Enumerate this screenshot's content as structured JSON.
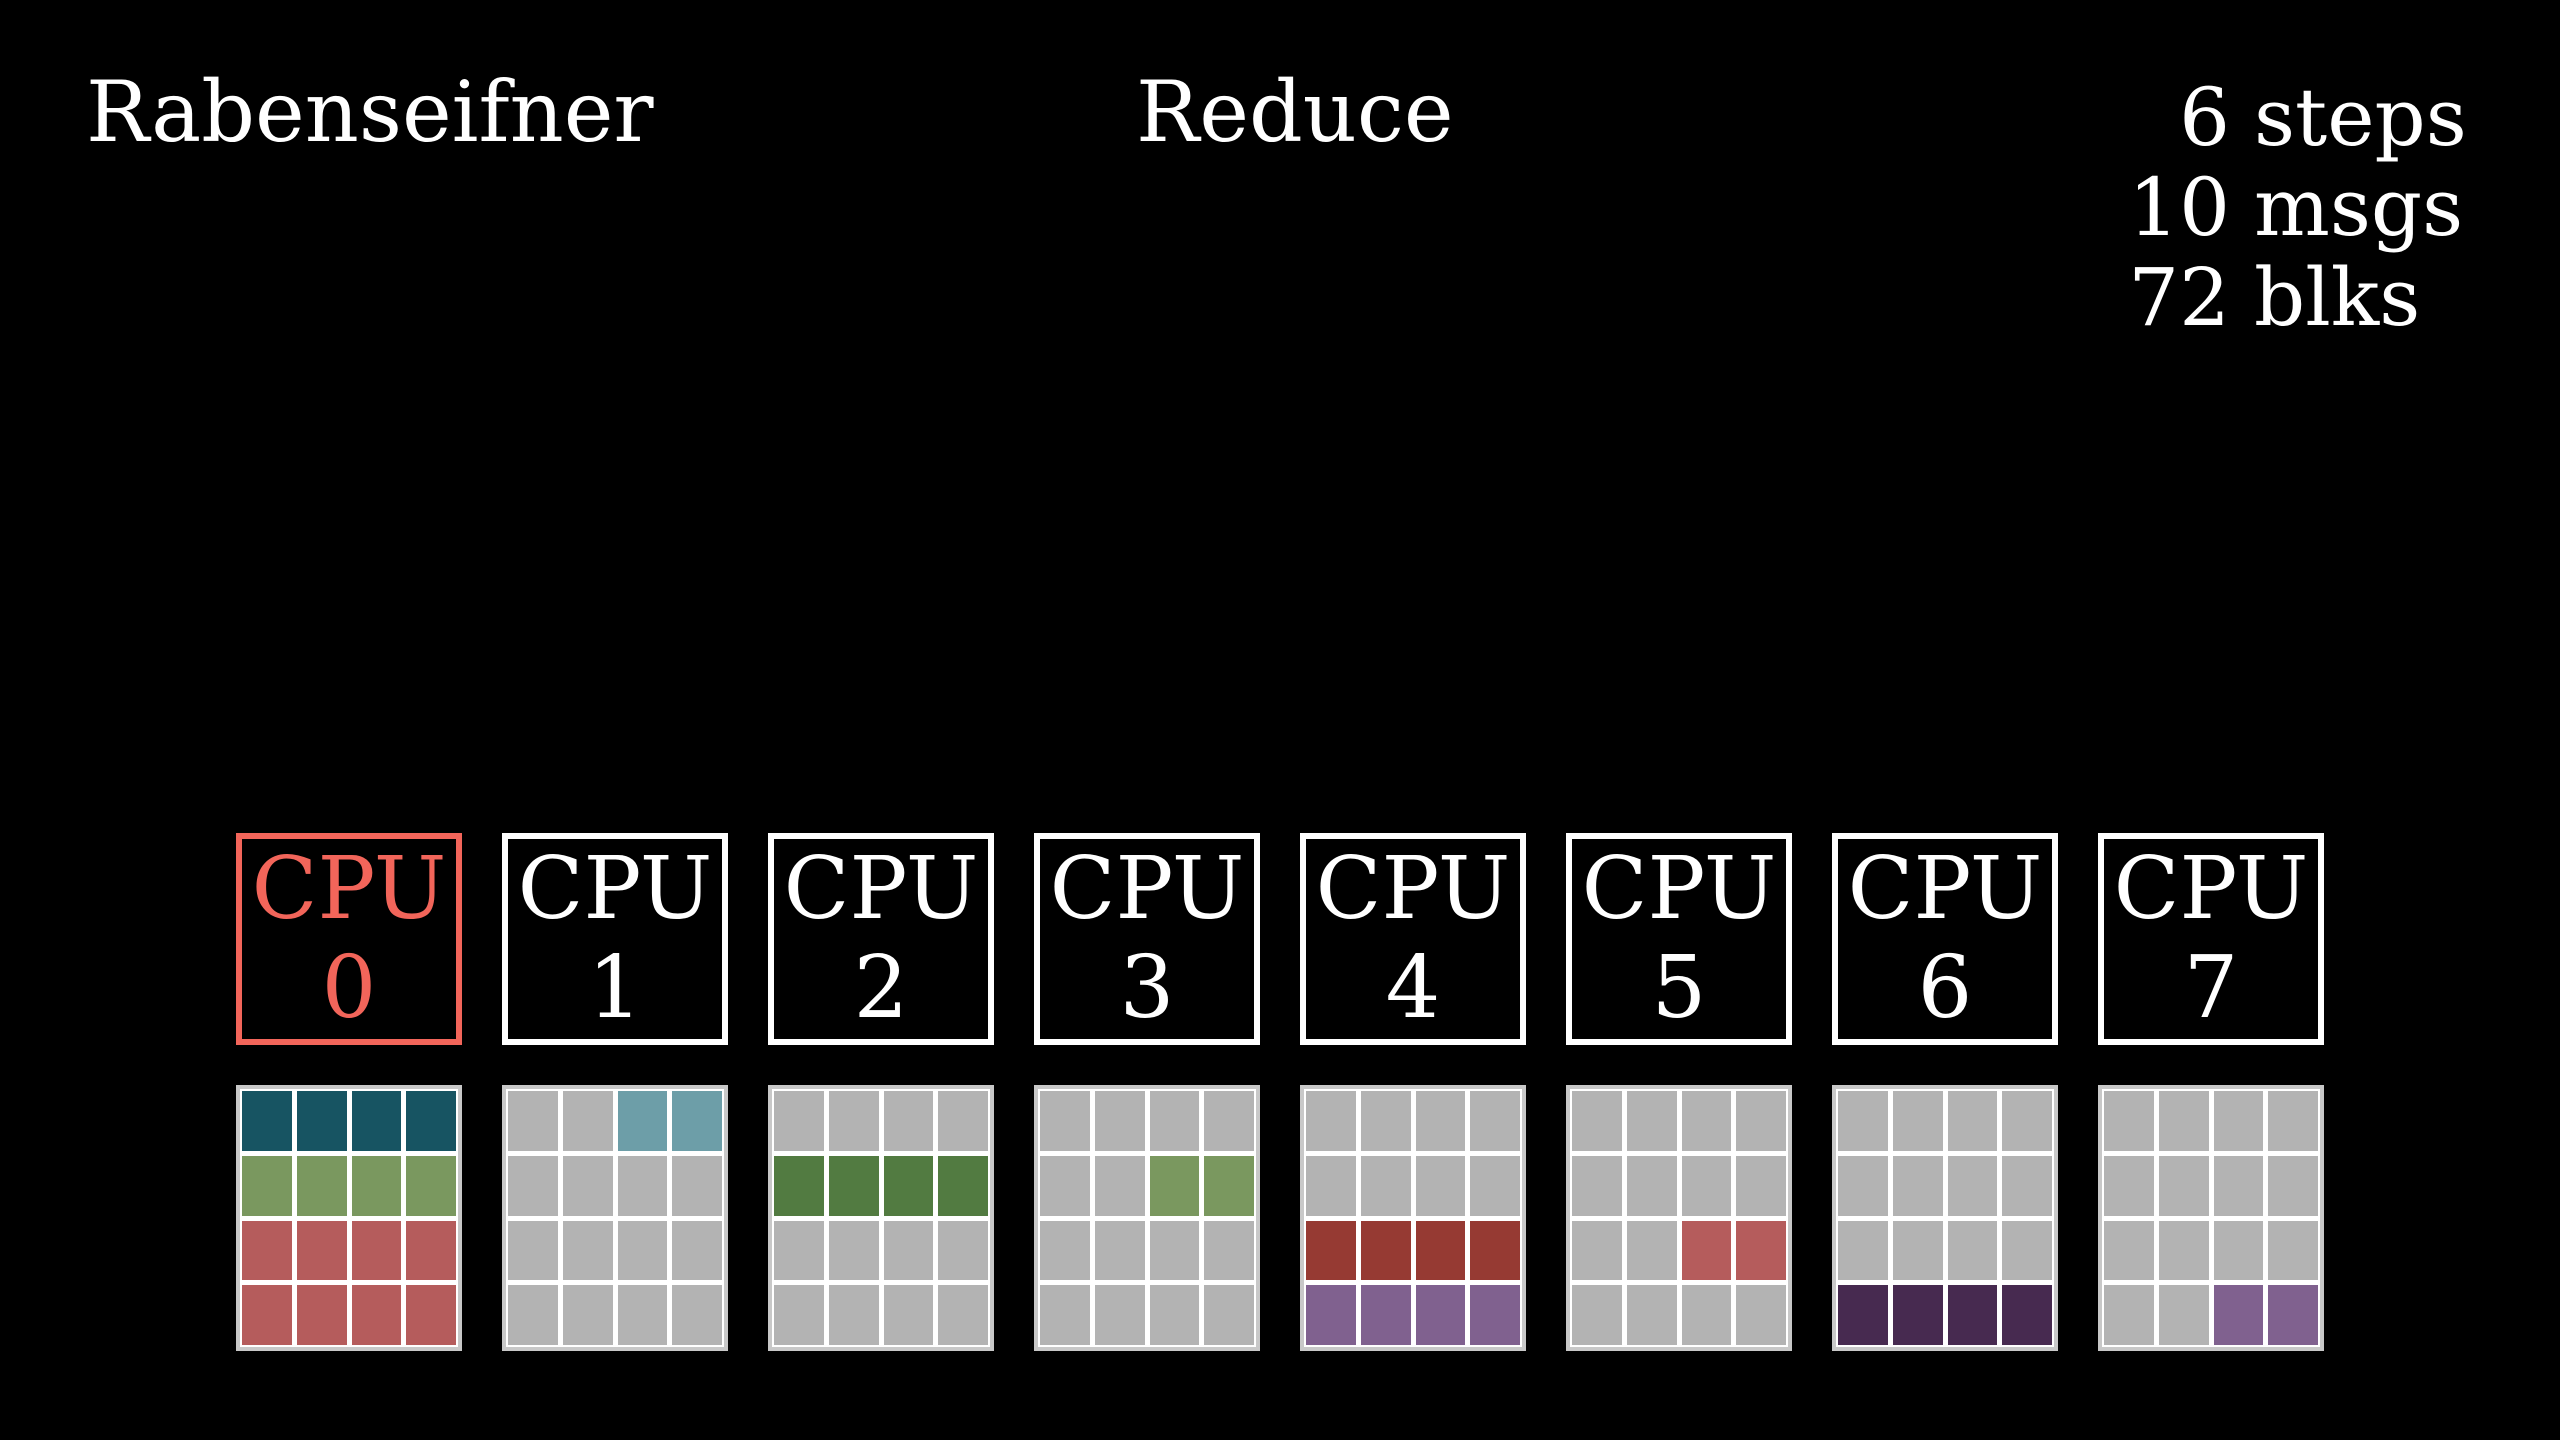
{
  "header": {
    "algorithm": "Rabenseifner",
    "operation": "Reduce"
  },
  "stats": [
    {
      "value": "6",
      "label": "steps"
    },
    {
      "value": "10",
      "label": "msgs"
    },
    {
      "value": "72",
      "label": "blks"
    }
  ],
  "cpu_label": "CPU",
  "colors": {
    "highlight": "#f2655a",
    "empty": "#b3b3b3",
    "teal_dark": "#175462",
    "teal_light": "#6d9ea8",
    "green_light": "#7a985f",
    "green_dark": "#527b41",
    "red_light": "#b55c5c",
    "red_dark": "#963a33",
    "purple_light": "#80618f",
    "purple_dark": "#472a50"
  },
  "cpus": [
    {
      "id": "0",
      "highlight": true,
      "grid": [
        [
          "teal_dark",
          "teal_dark",
          "teal_dark",
          "teal_dark"
        ],
        [
          "green_light",
          "green_light",
          "green_light",
          "green_light"
        ],
        [
          "red_light",
          "red_light",
          "red_light",
          "red_light"
        ],
        [
          "red_light",
          "red_light",
          "red_light",
          "red_light"
        ]
      ]
    },
    {
      "id": "1",
      "highlight": false,
      "grid": [
        [
          "empty",
          "empty",
          "teal_light",
          "teal_light"
        ],
        [
          "empty",
          "empty",
          "empty",
          "empty"
        ],
        [
          "empty",
          "empty",
          "empty",
          "empty"
        ],
        [
          "empty",
          "empty",
          "empty",
          "empty"
        ]
      ]
    },
    {
      "id": "2",
      "highlight": false,
      "grid": [
        [
          "empty",
          "empty",
          "empty",
          "empty"
        ],
        [
          "green_dark",
          "green_dark",
          "green_dark",
          "green_dark"
        ],
        [
          "empty",
          "empty",
          "empty",
          "empty"
        ],
        [
          "empty",
          "empty",
          "empty",
          "empty"
        ]
      ]
    },
    {
      "id": "3",
      "highlight": false,
      "grid": [
        [
          "empty",
          "empty",
          "empty",
          "empty"
        ],
        [
          "empty",
          "empty",
          "green_light",
          "green_light"
        ],
        [
          "empty",
          "empty",
          "empty",
          "empty"
        ],
        [
          "empty",
          "empty",
          "empty",
          "empty"
        ]
      ]
    },
    {
      "id": "4",
      "highlight": false,
      "grid": [
        [
          "empty",
          "empty",
          "empty",
          "empty"
        ],
        [
          "empty",
          "empty",
          "empty",
          "empty"
        ],
        [
          "red_dark",
          "red_dark",
          "red_dark",
          "red_dark"
        ],
        [
          "purple_light",
          "purple_light",
          "purple_light",
          "purple_light"
        ]
      ]
    },
    {
      "id": "5",
      "highlight": false,
      "grid": [
        [
          "empty",
          "empty",
          "empty",
          "empty"
        ],
        [
          "empty",
          "empty",
          "empty",
          "empty"
        ],
        [
          "empty",
          "empty",
          "red_light",
          "red_light"
        ],
        [
          "empty",
          "empty",
          "empty",
          "empty"
        ]
      ]
    },
    {
      "id": "6",
      "highlight": false,
      "grid": [
        [
          "empty",
          "empty",
          "empty",
          "empty"
        ],
        [
          "empty",
          "empty",
          "empty",
          "empty"
        ],
        [
          "empty",
          "empty",
          "empty",
          "empty"
        ],
        [
          "purple_dark",
          "purple_dark",
          "purple_dark",
          "purple_dark"
        ]
      ]
    },
    {
      "id": "7",
      "highlight": false,
      "grid": [
        [
          "empty",
          "empty",
          "empty",
          "empty"
        ],
        [
          "empty",
          "empty",
          "empty",
          "empty"
        ],
        [
          "empty",
          "empty",
          "empty",
          "empty"
        ],
        [
          "empty",
          "empty",
          "purple_light",
          "purple_light"
        ]
      ]
    }
  ]
}
